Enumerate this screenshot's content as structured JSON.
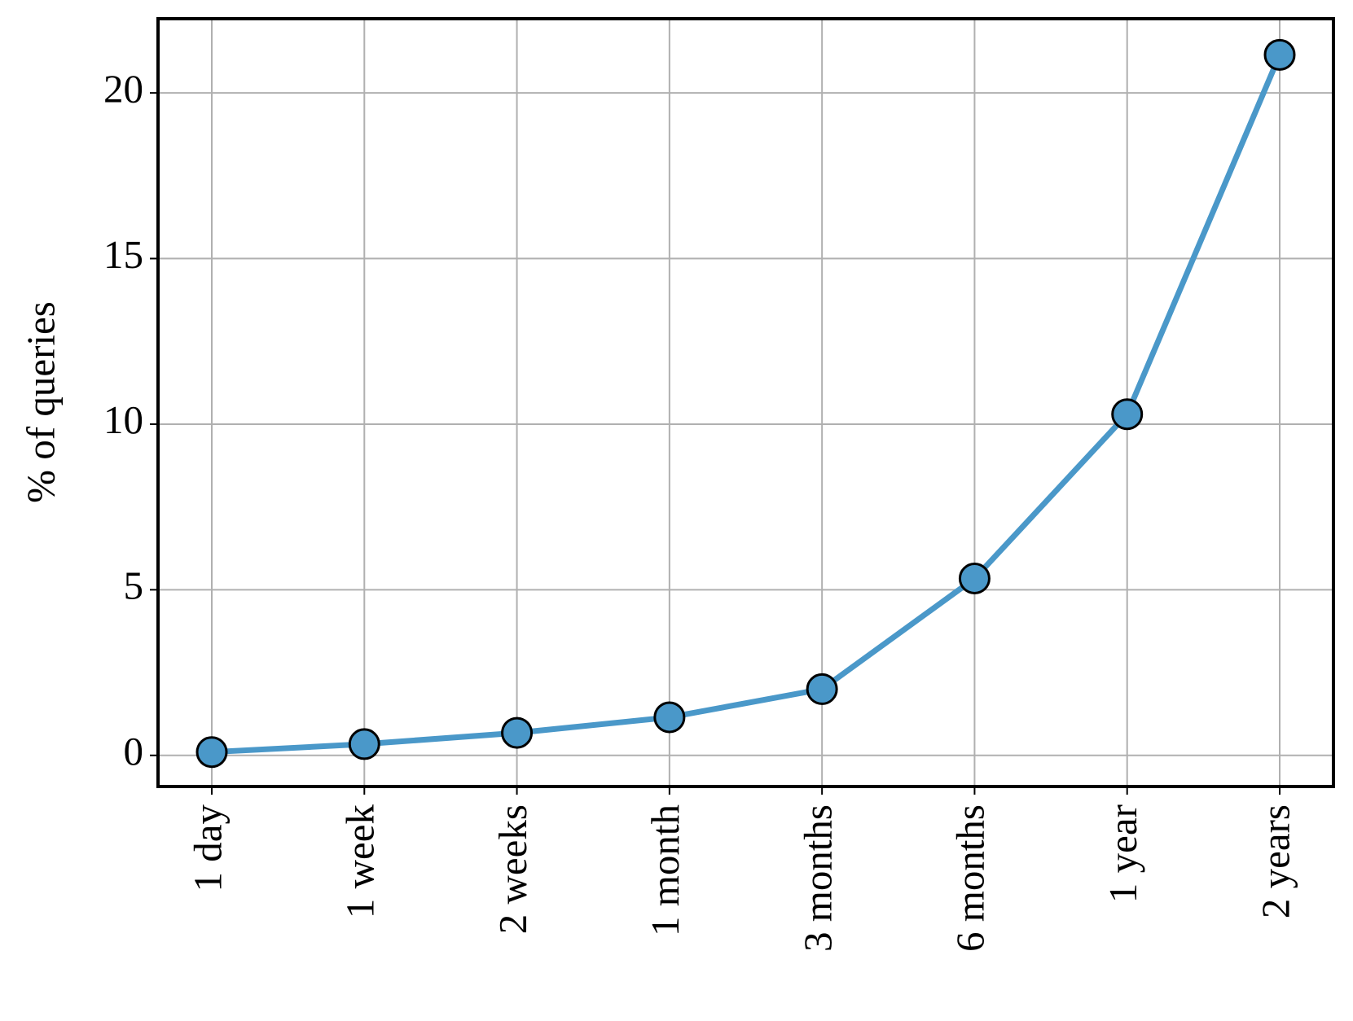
{
  "chart_data": {
    "type": "line",
    "y_label": "% of queries",
    "categories": [
      "1 day",
      "1 week",
      "2 weeks",
      "1 month",
      "3 months",
      "6 months",
      "1 year",
      "2 years"
    ],
    "values": [
      0.1,
      0.34,
      0.68,
      1.15,
      2.0,
      5.34,
      10.3,
      21.15
    ],
    "color": "#4a98c9",
    "ylim": [
      -0.94,
      22.24
    ],
    "yticks": [
      0,
      5,
      10,
      15,
      20
    ],
    "grid": true
  }
}
